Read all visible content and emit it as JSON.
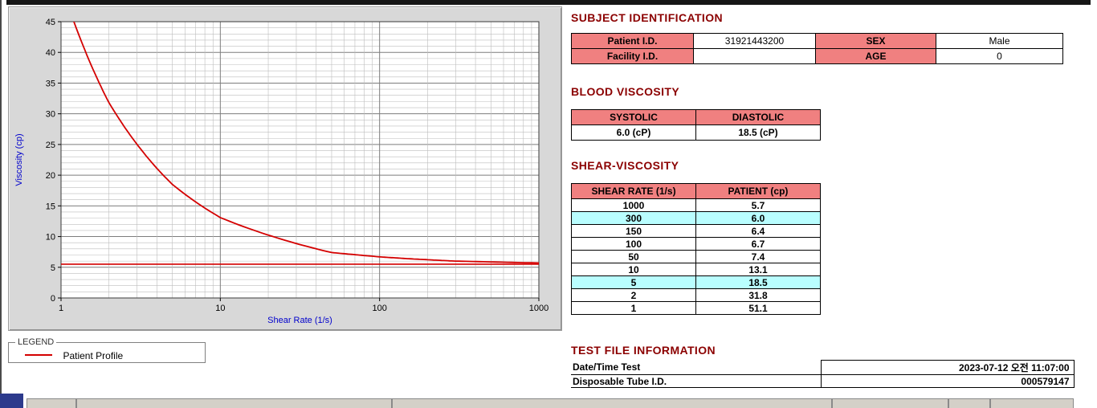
{
  "colors": {
    "section_title": "#8b0000",
    "table_header_bg": "#f08080",
    "highlight_row_bg": "#b9feff",
    "curve_red": "#d40000",
    "axis_label_blue": "#0000cc"
  },
  "legend": {
    "title": "LEGEND",
    "items": [
      {
        "label": "Patient Profile",
        "color": "#d40000"
      }
    ]
  },
  "sections": {
    "subject_identification": {
      "title": "SUBJECT IDENTIFICATION",
      "rows": [
        {
          "label1": "Patient I.D.",
          "value1": "31921443200",
          "label2": "SEX",
          "value2": "Male"
        },
        {
          "label1": "Facility I.D.",
          "value1": "",
          "label2": "AGE",
          "value2": "0"
        }
      ]
    },
    "blood_viscosity": {
      "title": "BLOOD VISCOSITY",
      "headers": [
        "SYSTOLIC",
        "DIASTOLIC"
      ],
      "values": [
        "6.0 (cP)",
        "18.5 (cP)"
      ]
    },
    "shear_viscosity": {
      "title": "SHEAR-VISCOSITY",
      "headers": [
        "SHEAR RATE (1/s)",
        "PATIENT (cp)"
      ],
      "rows": [
        {
          "shear": "1000",
          "value": "5.7",
          "highlight": false
        },
        {
          "shear": "300",
          "value": "6.0",
          "highlight": true
        },
        {
          "shear": "150",
          "value": "6.4",
          "highlight": false
        },
        {
          "shear": "100",
          "value": "6.7",
          "highlight": false
        },
        {
          "shear": "50",
          "value": "7.4",
          "highlight": false
        },
        {
          "shear": "10",
          "value": "13.1",
          "highlight": false
        },
        {
          "shear": "5",
          "value": "18.5",
          "highlight": true
        },
        {
          "shear": "2",
          "value": "31.8",
          "highlight": false
        },
        {
          "shear": "1",
          "value": "51.1",
          "highlight": false
        }
      ]
    },
    "test_file_information": {
      "title": "TEST FILE INFORMATION",
      "rows": [
        {
          "label": "Date/Time Test",
          "value": "2023-07-12  오전 11:07:00"
        },
        {
          "label": "Disposable Tube I.D.",
          "value": "000579147"
        }
      ]
    }
  },
  "chart_data": {
    "type": "line",
    "title": "",
    "xlabel": "Shear Rate (1/s)",
    "ylabel": "Viscosity (cp)",
    "x_scale": "log",
    "xlim": [
      1,
      1000
    ],
    "ylim": [
      0,
      45
    ],
    "y_tick_step": 5,
    "x_ticks": [
      1,
      10,
      100,
      1000
    ],
    "grid": "on",
    "legend_position": "below-left",
    "series": [
      {
        "name": "Patient Profile",
        "color": "#d40000",
        "points": [
          [
            1,
            51.1
          ],
          [
            2,
            31.8
          ],
          [
            5,
            18.5
          ],
          [
            10,
            13.1
          ],
          [
            50,
            7.4
          ],
          [
            100,
            6.7
          ],
          [
            150,
            6.4
          ],
          [
            300,
            6.0
          ],
          [
            1000,
            5.7
          ]
        ]
      }
    ],
    "reference_line": {
      "y": 5.5,
      "color": "#d40000"
    }
  }
}
